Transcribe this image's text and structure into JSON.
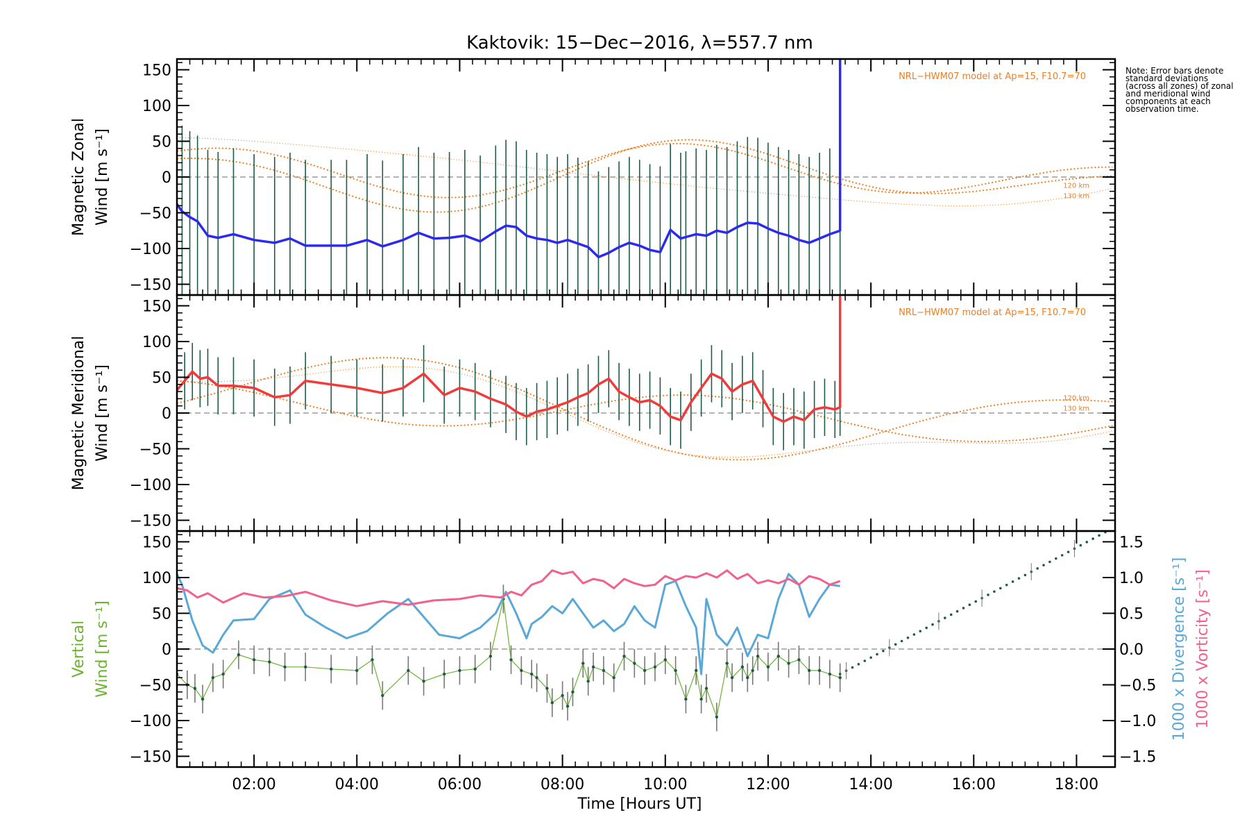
{
  "title": "Kaktovik: 15−Dec−2016, λ=557.7 nm",
  "note": "Note: Error bars denote standard deviations (across all zones) of zonal and meridional wind components at each observation time.",
  "xlabel": "Time [Hours UT]",
  "colors": {
    "zonal": "#2b2bf0",
    "zonal_light": "#5fb4e6",
    "meridional": "#f23a3a",
    "vertical": "#6ab42d",
    "divergence": "#5aa8d8",
    "vorticity": "#f2608c",
    "model": "#f07d1e",
    "errbar": "#1f5a4a"
  },
  "chart_data": [
    {
      "type": "line",
      "name": "zonal",
      "ylabel": "Magnetic Zonal Wind [m s⁻¹]",
      "ylabel_line1": "Magnetic Zonal",
      "ylabel_line2": "Wind [m s⁻¹]",
      "xlim": [
        0.5,
        18.75
      ],
      "ylim": [
        -165,
        165
      ],
      "xticks": [
        "02:00",
        "04:00",
        "06:00",
        "08:00",
        "10:00",
        "12:00",
        "14:00",
        "16:00",
        "18:00"
      ],
      "yticks": [
        -150,
        -100,
        -50,
        0,
        50,
        100,
        150
      ],
      "annotations": [
        "NRL−HWM07 model at Ap=15, F10.7=70",
        "120 km",
        "130 km"
      ],
      "series": [
        {
          "x": [
            0.5,
            0.6,
            0.75,
            0.9,
            1.1,
            1.3,
            1.6,
            2.0,
            2.4,
            2.7,
            3.0,
            3.5,
            3.8,
            4.2,
            4.5,
            4.9,
            5.2,
            5.5,
            5.8,
            6.1,
            6.4,
            6.7,
            6.9,
            7.1,
            7.3,
            7.5,
            7.7,
            7.9,
            8.1,
            8.3,
            8.5,
            8.7,
            8.9,
            9.1,
            9.3,
            9.5,
            9.7,
            9.9,
            10.1,
            10.3,
            10.4,
            10.6,
            10.8,
            11.0,
            11.2,
            11.4,
            11.6,
            11.8,
            12.0,
            12.2,
            12.4,
            12.6,
            12.8,
            13.0,
            13.2,
            13.4
          ],
          "y": [
            -38,
            -48,
            -56,
            -62,
            -82,
            -85,
            -80,
            -88,
            -92,
            -86,
            -96,
            -96,
            -96,
            -88,
            -97,
            -88,
            -78,
            -86,
            -85,
            -82,
            -90,
            -76,
            -68,
            -70,
            -82,
            -86,
            -88,
            -92,
            -88,
            -93,
            -98,
            -112,
            -106,
            -98,
            -92,
            -96,
            -102,
            -105,
            -74,
            -86,
            -84,
            -80,
            -82,
            -75,
            -78,
            -70,
            -64,
            -65,
            -72,
            -78,
            -82,
            -88,
            -92,
            -86,
            -80,
            -75
          ]
        }
      ],
      "error_bar_halfwidth": 120
    },
    {
      "type": "line",
      "name": "meridional",
      "ylabel": "Magnetic Meridional Wind [m s⁻¹]",
      "ylabel_line1": "Magnetic Meridional",
      "ylabel_line2": "Wind [m s⁻¹]",
      "xlim": [
        0.5,
        18.75
      ],
      "ylim": [
        -165,
        165
      ],
      "xticks": [
        "02:00",
        "04:00",
        "06:00",
        "08:00",
        "10:00",
        "12:00",
        "14:00",
        "16:00",
        "18:00"
      ],
      "yticks": [
        -150,
        -100,
        -50,
        0,
        50,
        100,
        150
      ],
      "annotations": [
        "NRL−HWM07 model at Ap=15, F10.7=70",
        "120 km",
        "130 km"
      ],
      "series": [
        {
          "x": [
            0.5,
            0.65,
            0.8,
            0.95,
            1.1,
            1.3,
            1.6,
            2.0,
            2.4,
            2.7,
            3.0,
            3.5,
            4.0,
            4.5,
            4.9,
            5.3,
            5.7,
            6.0,
            6.3,
            6.6,
            6.9,
            7.1,
            7.3,
            7.5,
            7.7,
            7.9,
            8.1,
            8.3,
            8.5,
            8.7,
            8.9,
            9.1,
            9.3,
            9.5,
            9.7,
            9.9,
            10.1,
            10.3,
            10.5,
            10.7,
            10.9,
            11.1,
            11.3,
            11.5,
            11.7,
            11.9,
            12.1,
            12.3,
            12.5,
            12.7,
            12.9,
            13.1,
            13.3,
            13.4
          ],
          "y": [
            32,
            45,
            58,
            48,
            50,
            38,
            38,
            35,
            22,
            25,
            45,
            40,
            35,
            28,
            35,
            55,
            25,
            35,
            30,
            20,
            12,
            2,
            -5,
            2,
            5,
            10,
            15,
            22,
            28,
            40,
            48,
            30,
            22,
            15,
            18,
            10,
            -5,
            -10,
            15,
            35,
            55,
            48,
            30,
            40,
            45,
            20,
            -5,
            -12,
            -5,
            -10,
            5,
            8,
            5,
            8
          ]
        }
      ],
      "error_bar_halfwidth": 40
    },
    {
      "type": "line",
      "name": "vertical",
      "ylabel": "Vertical Wind [m s⁻¹]",
      "ylabel_line1": "Vertical",
      "ylabel_line2": "Wind [m s⁻¹]",
      "ylabel_right1": "1000 x Divergence [s⁻¹]",
      "ylabel_right2": "1000 x Vorticity [s⁻¹]",
      "xlim": [
        0.5,
        18.75
      ],
      "ylim": [
        -165,
        165
      ],
      "y2lim": [
        -1.65,
        1.65
      ],
      "xticks": [
        "02:00",
        "04:00",
        "06:00",
        "08:00",
        "10:00",
        "12:00",
        "14:00",
        "16:00",
        "18:00"
      ],
      "yticks": [
        -150,
        -100,
        -50,
        0,
        50,
        100,
        150
      ],
      "y2ticks": [
        "−1.5",
        "−1.0",
        "−0.5",
        "0.0",
        "0.5",
        "1.0",
        "1.5"
      ],
      "series": [
        {
          "name": "vertical",
          "x": [
            0.5,
            0.7,
            0.85,
            1.0,
            1.2,
            1.4,
            1.7,
            2.0,
            2.3,
            2.6,
            3.0,
            3.5,
            4.0,
            4.3,
            4.5,
            5.0,
            5.3,
            5.7,
            6.0,
            6.3,
            6.6,
            6.85,
            7.0,
            7.2,
            7.4,
            7.5,
            7.7,
            7.8,
            8.0,
            8.1,
            8.2,
            8.4,
            8.5,
            8.6,
            8.8,
            9.0,
            9.2,
            9.4,
            9.6,
            9.8,
            10.0,
            10.2,
            10.4,
            10.6,
            10.7,
            10.8,
            11.0,
            11.2,
            11.3,
            11.5,
            11.6,
            11.7,
            11.8,
            12.0,
            12.2,
            12.4,
            12.6,
            12.8,
            13.0,
            13.2,
            13.4
          ],
          "y": [
            -35,
            -50,
            -55,
            -70,
            -40,
            -35,
            -8,
            -15,
            -18,
            -25,
            -25,
            -28,
            -30,
            -15,
            -65,
            -30,
            -45,
            -35,
            -30,
            -28,
            -10,
            70,
            -15,
            -30,
            -35,
            -40,
            -55,
            -75,
            -65,
            -80,
            -60,
            -20,
            -45,
            -25,
            -30,
            -40,
            -10,
            -20,
            -30,
            -25,
            -15,
            -30,
            -70,
            -30,
            -70,
            -55,
            -95,
            -20,
            -40,
            -25,
            -40,
            -30,
            -10,
            -25,
            -10,
            -20,
            -15,
            -30,
            -30,
            -35,
            -40
          ]
        },
        {
          "name": "divergence",
          "x": [
            0.5,
            0.6,
            0.8,
            1.0,
            1.2,
            1.4,
            1.6,
            2.0,
            2.3,
            2.7,
            3.0,
            3.4,
            3.8,
            4.2,
            4.6,
            5.0,
            5.3,
            5.6,
            6.0,
            6.4,
            6.7,
            6.9,
            7.1,
            7.3,
            7.4,
            7.6,
            7.8,
            8.0,
            8.2,
            8.4,
            8.6,
            8.8,
            9.0,
            9.2,
            9.4,
            9.6,
            9.8,
            10.0,
            10.2,
            10.4,
            10.6,
            10.7,
            10.8,
            11.0,
            11.2,
            11.4,
            11.6,
            11.8,
            12.0,
            12.2,
            12.4,
            12.6,
            12.8,
            13.0,
            13.2,
            13.4
          ],
          "y": [
            1.05,
            0.9,
            0.4,
            0.05,
            -0.05,
            0.2,
            0.4,
            0.42,
            0.7,
            0.82,
            0.48,
            0.3,
            0.15,
            0.25,
            0.5,
            0.7,
            0.45,
            0.2,
            0.15,
            0.3,
            0.5,
            0.8,
            0.5,
            0.15,
            0.35,
            0.45,
            0.6,
            0.5,
            0.7,
            0.5,
            0.3,
            0.4,
            0.25,
            0.35,
            0.6,
            0.4,
            0.3,
            0.9,
            0.95,
            0.6,
            0.3,
            -0.35,
            0.7,
            0.2,
            0.05,
            0.3,
            -0.1,
            0.2,
            0.15,
            0.7,
            1.05,
            0.9,
            0.45,
            0.7,
            0.9,
            0.88
          ]
        },
        {
          "name": "vorticity",
          "x": [
            0.5,
            0.7,
            0.9,
            1.1,
            1.4,
            1.8,
            2.2,
            2.6,
            3.0,
            3.5,
            4.0,
            4.5,
            5.0,
            5.5,
            6.0,
            6.4,
            6.8,
            7.0,
            7.2,
            7.4,
            7.6,
            7.8,
            8.0,
            8.2,
            8.4,
            8.6,
            8.8,
            9.0,
            9.2,
            9.4,
            9.6,
            9.8,
            10.0,
            10.2,
            10.4,
            10.6,
            10.8,
            11.0,
            11.2,
            11.4,
            11.6,
            11.8,
            12.0,
            12.2,
            12.4,
            12.6,
            12.8,
            13.0,
            13.2,
            13.4
          ],
          "y": [
            0.85,
            0.82,
            0.72,
            0.78,
            0.65,
            0.78,
            0.72,
            0.74,
            0.8,
            0.68,
            0.6,
            0.67,
            0.62,
            0.68,
            0.7,
            0.75,
            0.72,
            0.8,
            0.75,
            0.9,
            0.95,
            1.1,
            1.05,
            1.08,
            0.92,
            0.98,
            0.95,
            0.85,
            0.98,
            0.92,
            0.88,
            0.9,
            1.02,
            0.96,
            1.02,
            1.0,
            1.06,
            1.0,
            1.1,
            0.98,
            1.05,
            0.92,
            0.96,
            0.92,
            0.98,
            0.9,
            1.02,
            0.98,
            0.9,
            0.95
          ]
        },
        {
          "name": "trend",
          "x": [
            13.4,
            18.6
          ],
          "y": [
            -35,
            165
          ]
        }
      ]
    }
  ]
}
